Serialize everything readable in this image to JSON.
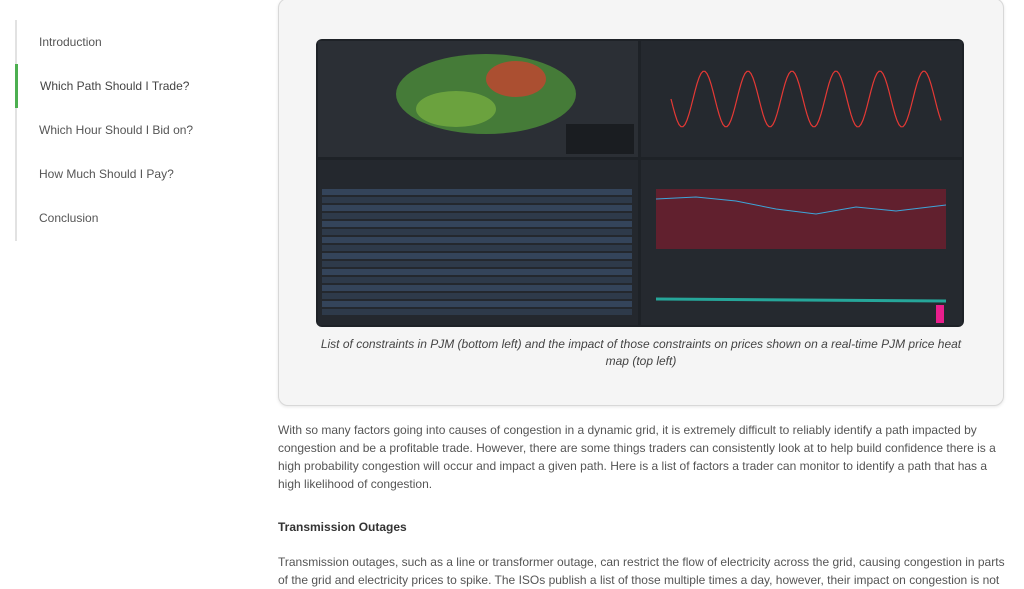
{
  "sidebar": {
    "items": [
      "Introduction",
      "Which Path Should I Trade?",
      "Which Hour Should I Bid on?",
      "How Much Should I Pay?",
      "Conclusion"
    ],
    "active": 1
  },
  "figure": {
    "caption": "List of constraints in PJM (bottom left) and the impact of those constraints on prices shown on a real-time PJM price heat map (top left)"
  },
  "article": {
    "paragraphs": [
      "With so many factors going into causes of congestion in a dynamic grid, it is extremely difficult to reliably identify a path impacted by congestion and be a profitable trade. However, there are some things traders can consistently look at to help build confidence there is a high probability congestion will occur and impact a given path. Here is a list of factors a trader can monitor to identify a path that has a high likelihood of congestion."
    ],
    "sections": [
      {
        "heading": "Transmission Outages",
        "paragraphs": [
          "Transmission outages, such as a line or transformer outage, can restrict the flow of electricity across the grid, causing congestion in parts of the grid and electricity prices to spike. The ISOs publish a list of those multiple times a day, however, their impact on congestion is not"
        ]
      }
    ]
  }
}
